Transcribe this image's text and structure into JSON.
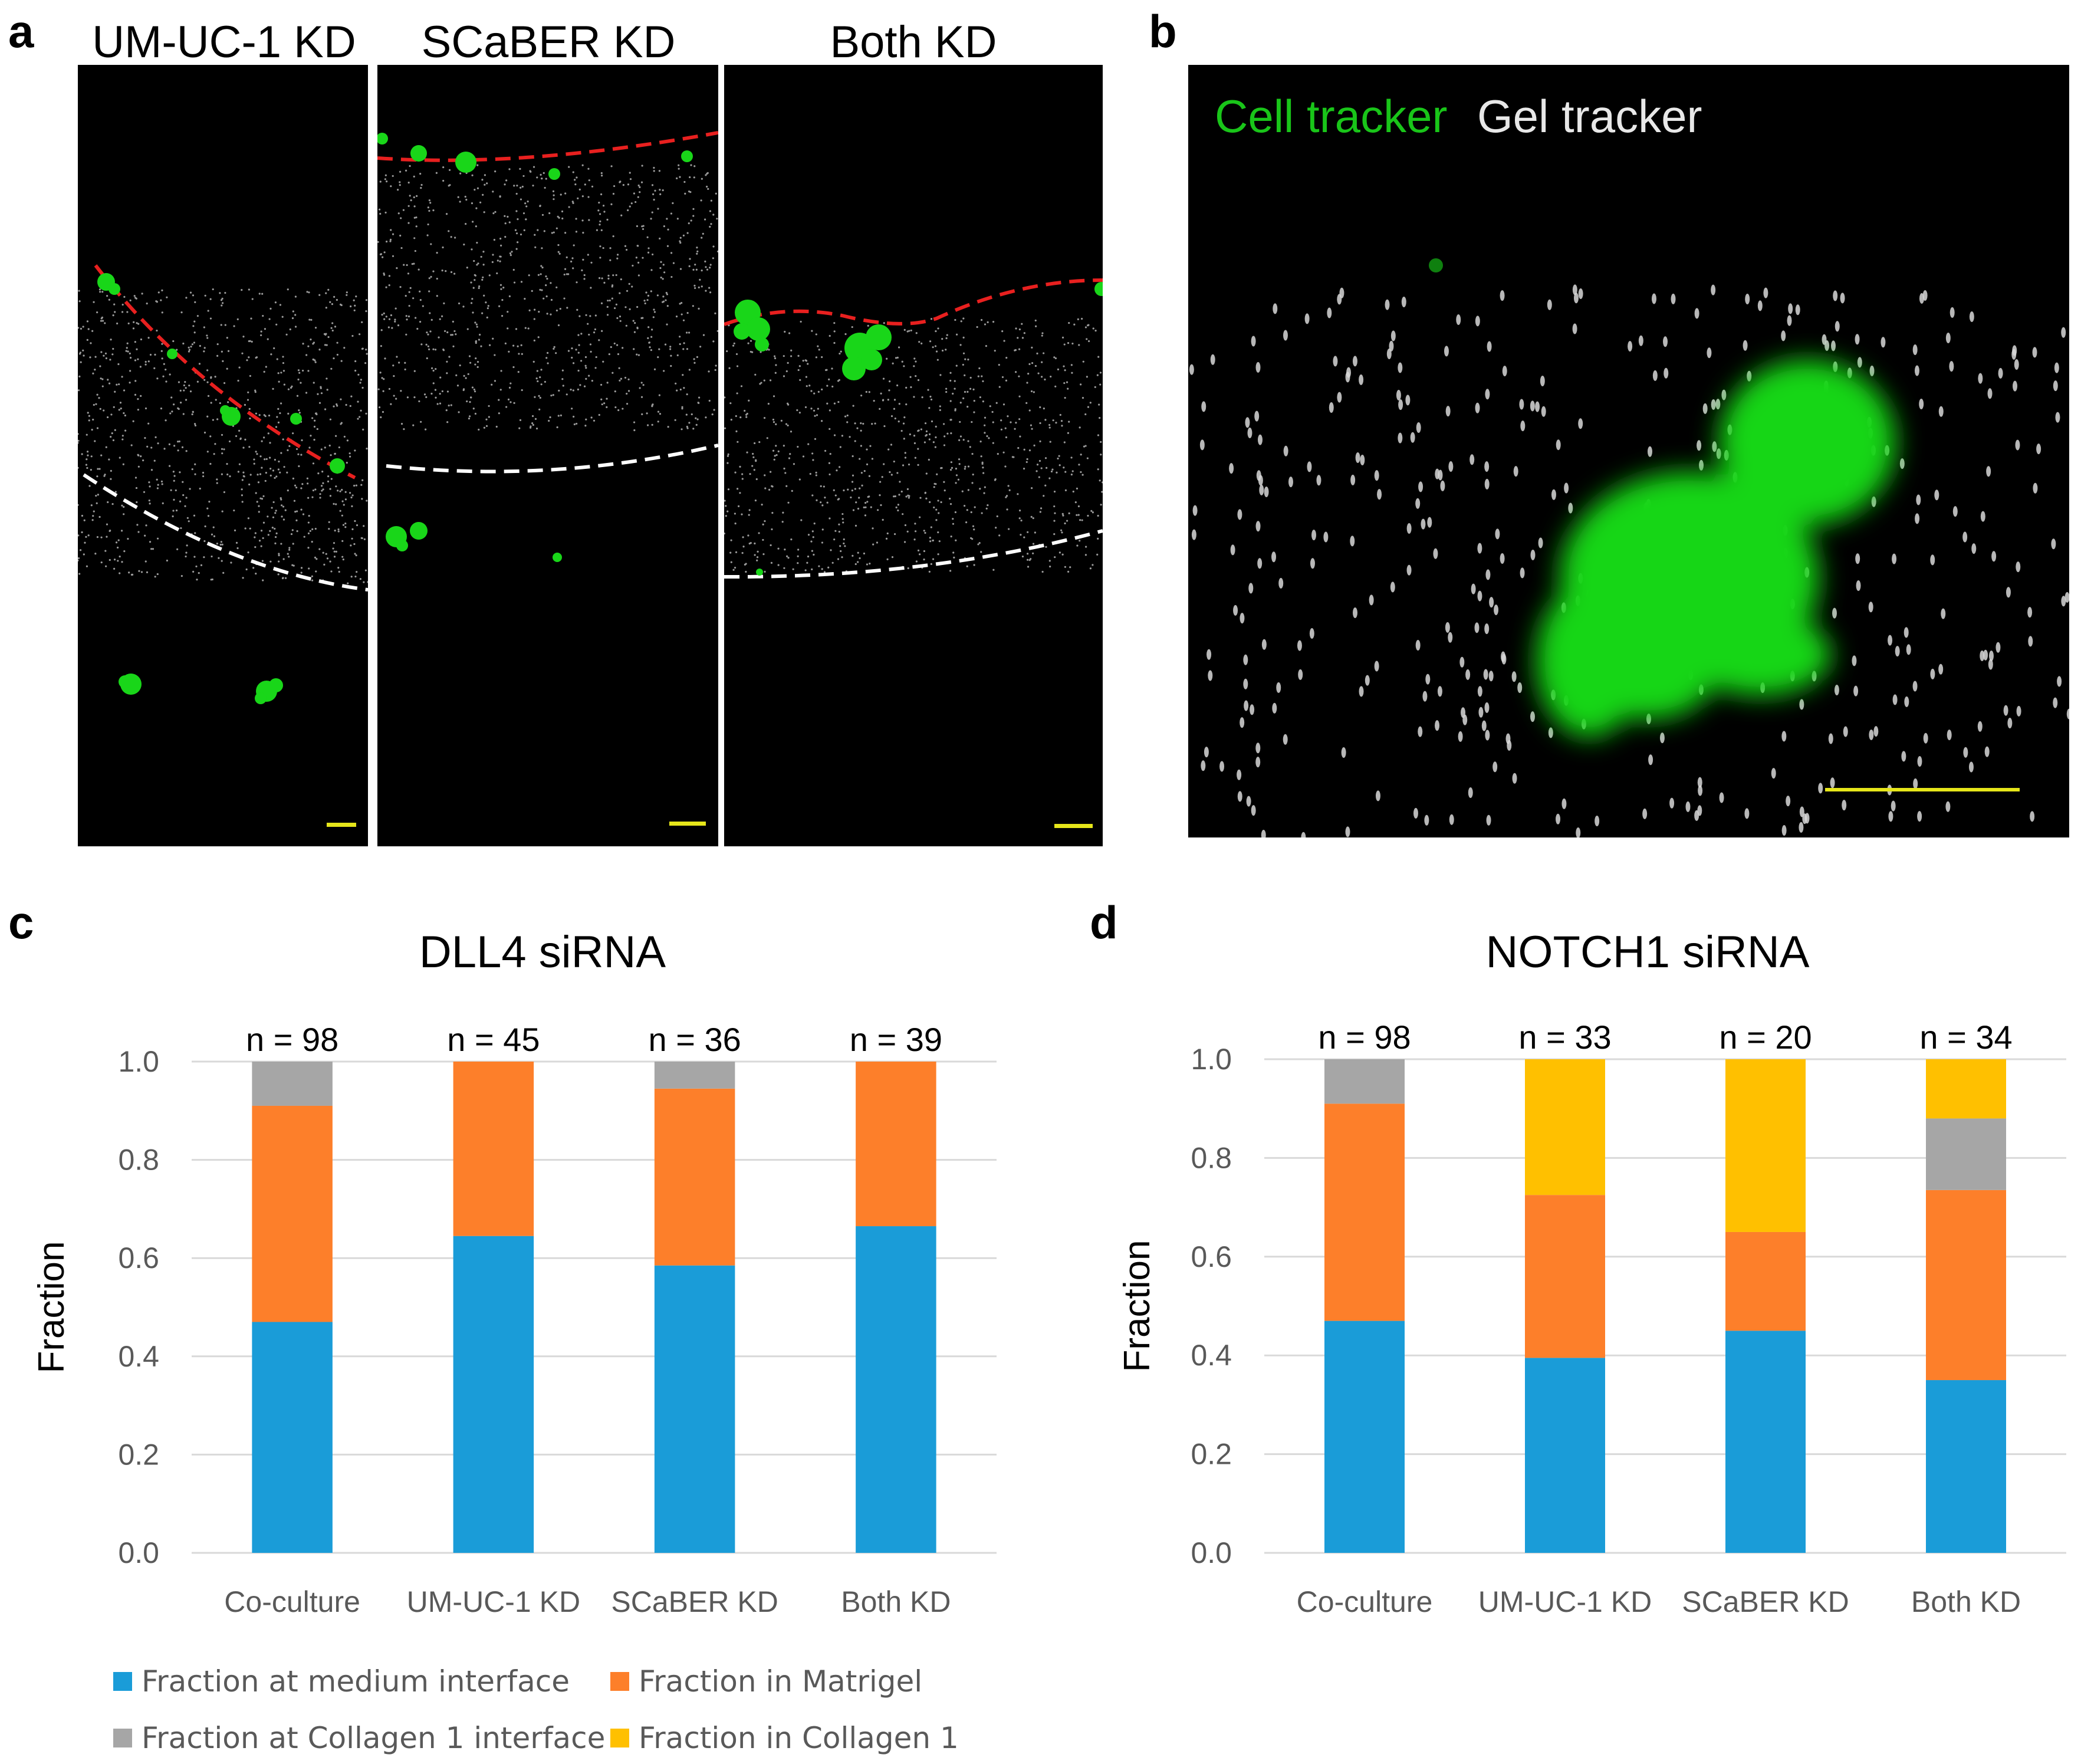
{
  "panel_labels": {
    "a": "a",
    "b": "b",
    "c": "c",
    "d": "d"
  },
  "panel_a": {
    "titles": [
      "UM-UC-1 KD",
      "SCaBER KD",
      "Both KD"
    ]
  },
  "panel_b": {
    "cell_tracker_label": "Cell tracker",
    "gel_tracker_label": "Gel tracker"
  },
  "colors": {
    "medium_interface": "#1a9cd8",
    "matrigel": "#fd7f2a",
    "collagen_interface": "#a6a6a6",
    "collagen": "#ffc000",
    "cell_green": "#19d619",
    "red_dash": "#e8201f",
    "scale_bar": "#e6e61a"
  },
  "legend": {
    "medium": "Fraction at medium interface",
    "matrigel": "Fraction in Matrigel",
    "collagen_interface": "Fraction at Collagen 1 interface",
    "collagen": "Fraction in Collagen 1"
  },
  "chart_data": [
    {
      "type": "bar",
      "stacked": true,
      "title": "DLL4 siRNA",
      "ylabel": "Fraction",
      "xlabel": "",
      "ylim": [
        0,
        1
      ],
      "yticks": [
        "0.0",
        "0.2",
        "0.4",
        "0.6",
        "0.8",
        "1.0"
      ],
      "categories": [
        "Co-culture",
        "UM-UC-1 KD",
        "SCaBER KD",
        "Both KD"
      ],
      "n_labels": [
        "n = 98",
        "n = 45",
        "n = 36",
        "n = 39"
      ],
      "series": [
        {
          "name": "Fraction at medium interface",
          "color_key": "medium_interface",
          "values": [
            0.47,
            0.645,
            0.585,
            0.665
          ]
        },
        {
          "name": "Fraction in Matrigel",
          "color_key": "matrigel",
          "values": [
            0.44,
            0.355,
            0.36,
            0.335
          ]
        },
        {
          "name": "Fraction at Collagen 1 interface",
          "color_key": "collagen_interface",
          "values": [
            0.09,
            0.0,
            0.055,
            0.0
          ]
        },
        {
          "name": "Fraction in Collagen 1",
          "color_key": "collagen",
          "values": [
            0.0,
            0.0,
            0.0,
            0.0
          ]
        }
      ]
    },
    {
      "type": "bar",
      "stacked": true,
      "title": "NOTCH1 siRNA",
      "ylabel": "Fraction",
      "xlabel": "",
      "ylim": [
        0,
        1
      ],
      "yticks": [
        "0.0",
        "0.2",
        "0.4",
        "0.6",
        "0.8",
        "1.0"
      ],
      "categories": [
        "Co-culture",
        "UM-UC-1 KD",
        "SCaBER KD",
        "Both KD"
      ],
      "n_labels": [
        "n = 98",
        "n = 33",
        "n = 20",
        "n = 34"
      ],
      "series": [
        {
          "name": "Fraction at medium interface",
          "color_key": "medium_interface",
          "values": [
            0.47,
            0.395,
            0.45,
            0.35
          ]
        },
        {
          "name": "Fraction in Matrigel",
          "color_key": "matrigel",
          "values": [
            0.44,
            0.33,
            0.2,
            0.385
          ]
        },
        {
          "name": "Fraction at Collagen 1 interface",
          "color_key": "collagen_interface",
          "values": [
            0.09,
            0.0,
            0.0,
            0.145
          ]
        },
        {
          "name": "Fraction in Collagen 1",
          "color_key": "collagen",
          "values": [
            0.0,
            0.275,
            0.35,
            0.12
          ]
        }
      ]
    }
  ]
}
